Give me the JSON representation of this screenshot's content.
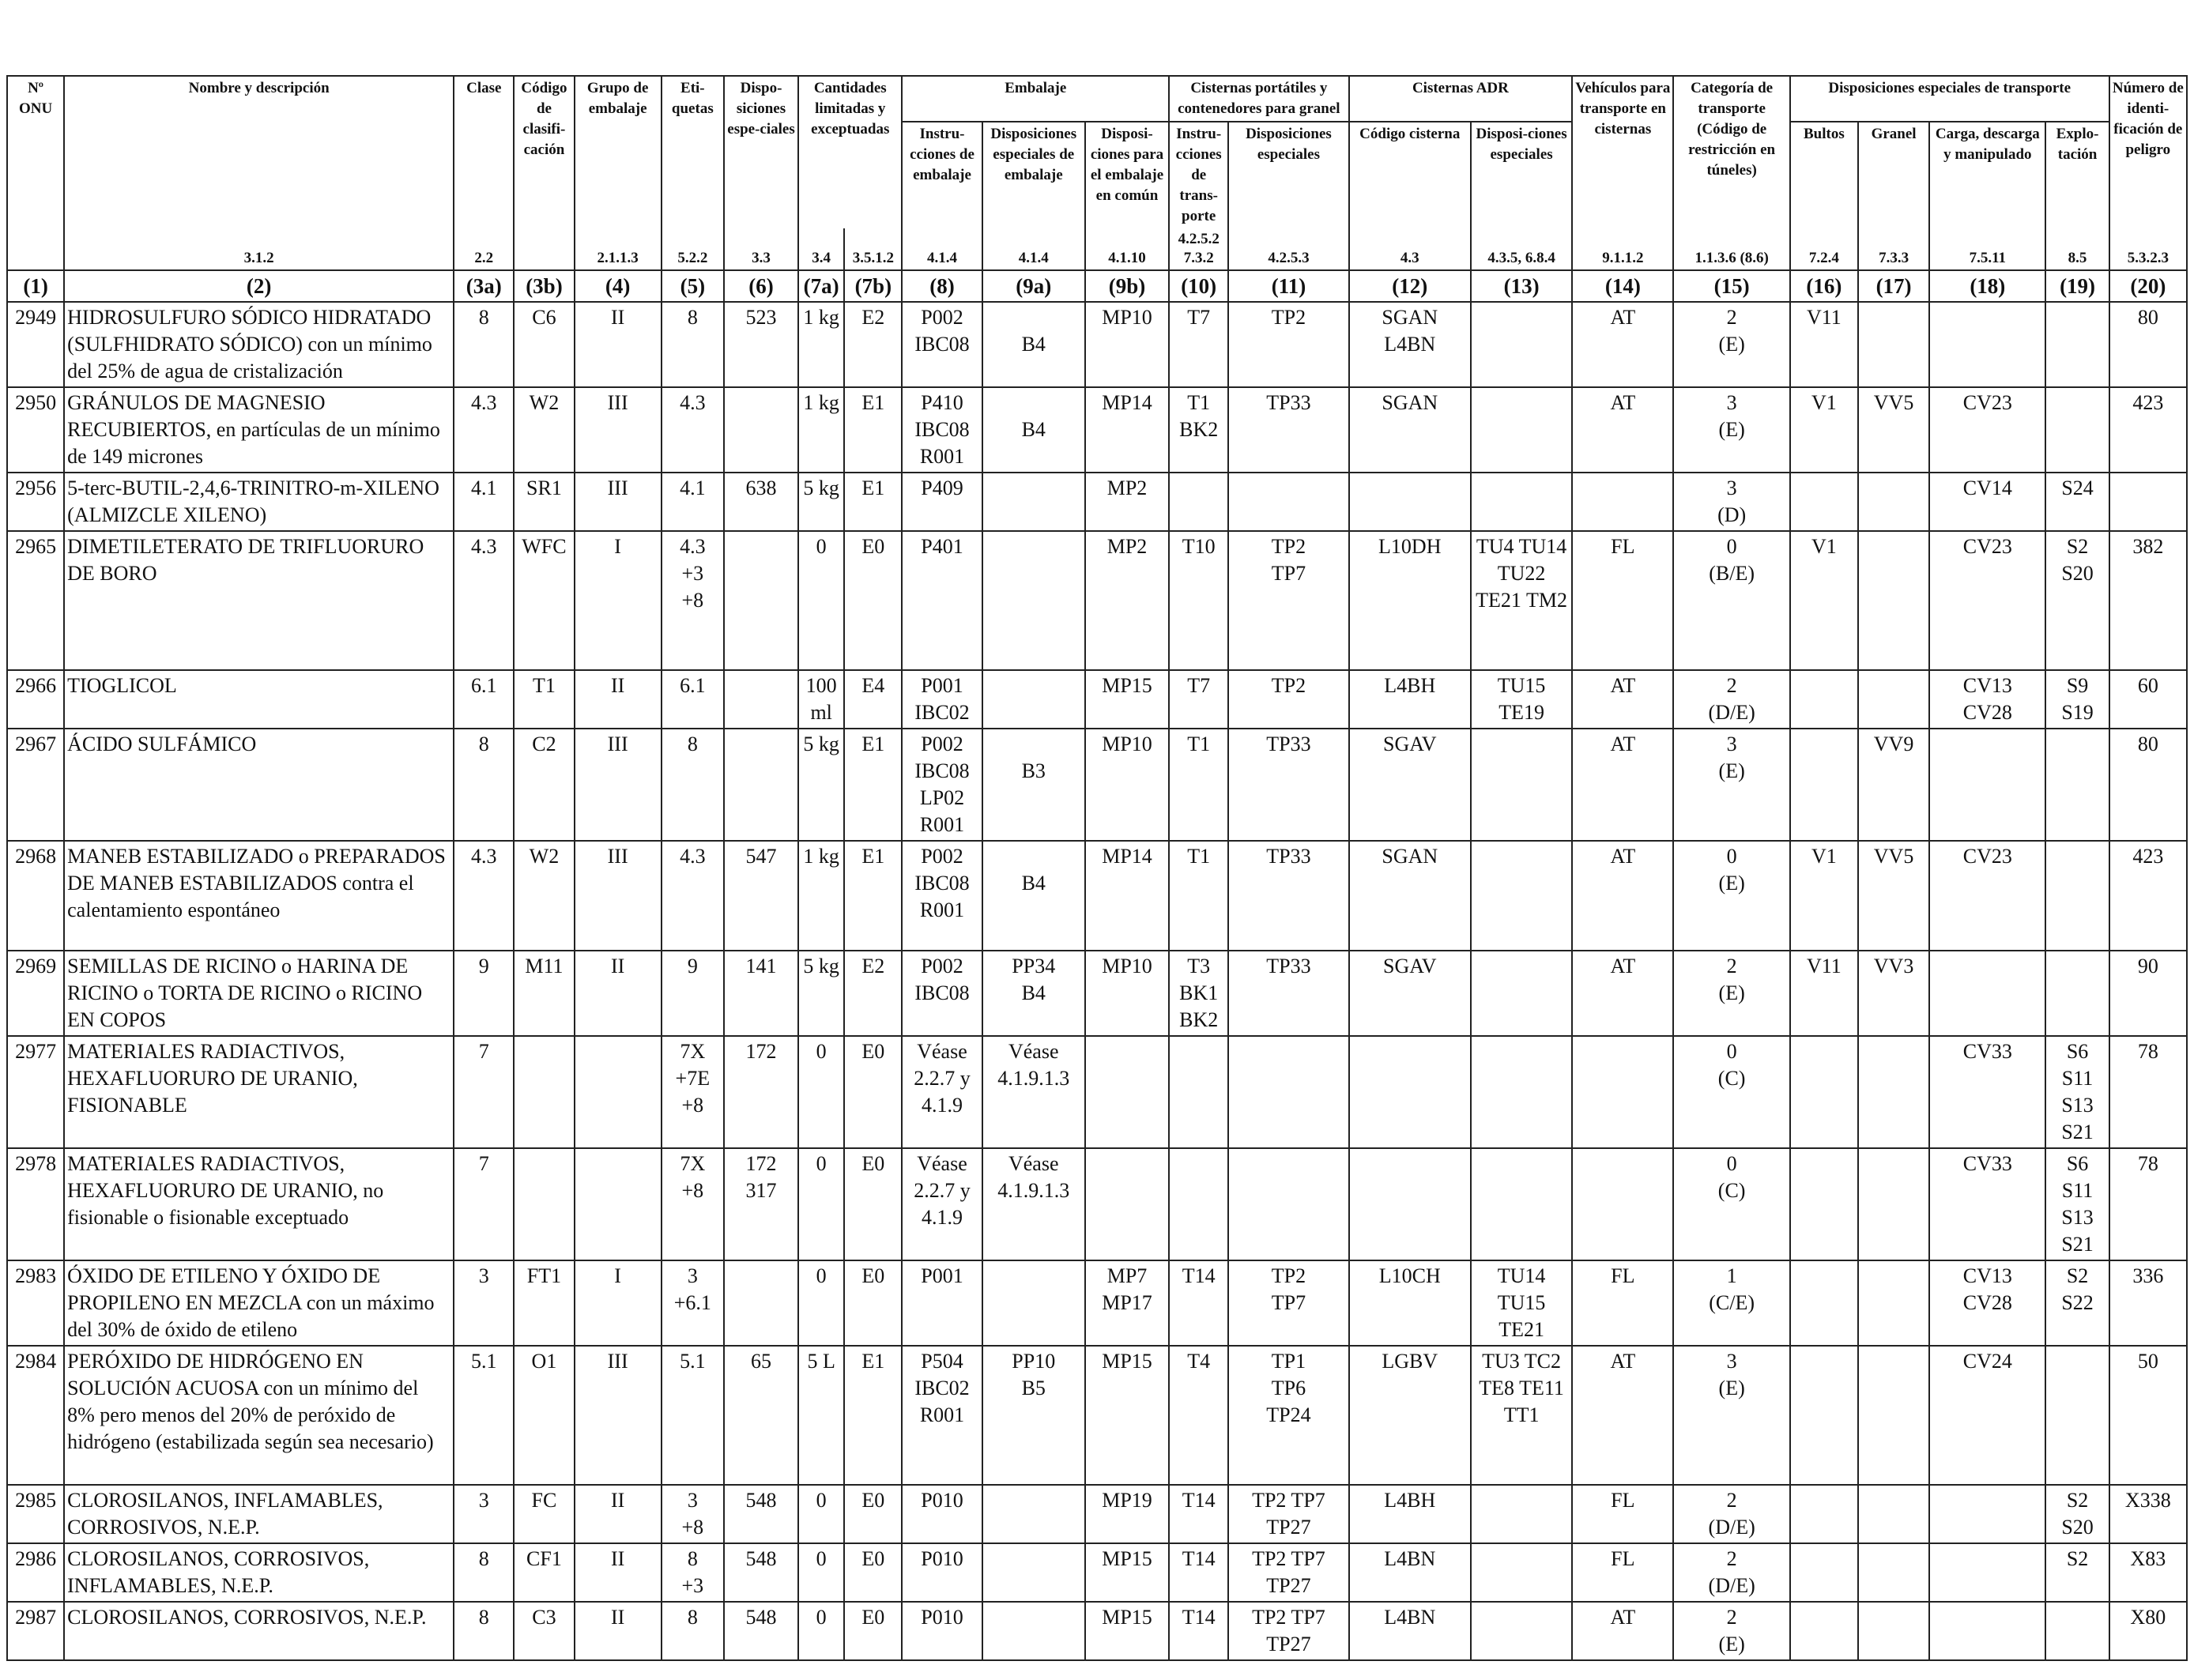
{
  "columns": [
    {
      "head": "Nº ONU",
      "ref": "",
      "num": "(1)"
    },
    {
      "head": "Nombre y descripción",
      "ref": "3.1.2",
      "num": "(2)"
    },
    {
      "head": "Clase",
      "ref": "2.2",
      "num": "(3a)"
    },
    {
      "head": "Código de clasifi-cación",
      "ref": "",
      "num": "(3b)"
    },
    {
      "head": "Grupo de embalaje",
      "ref": "2.1.1.3",
      "num": "(4)"
    },
    {
      "head": "Eti-quetas",
      "ref": "5.2.2",
      "num": "(5)"
    },
    {
      "head": "Dispo-siciones espe-ciales",
      "ref": "3.3",
      "num": "(6)"
    },
    {
      "head": "",
      "ref": "3.4",
      "num": "(7a)"
    },
    {
      "head": "",
      "ref": "3.5.1.2",
      "num": "(7b)"
    },
    {
      "head": "Instru-cciones de embalaje",
      "ref": "4.1.4",
      "num": "(8)"
    },
    {
      "head": "Disposiciones especiales de embalaje",
      "ref": "4.1.4",
      "num": "(9a)"
    },
    {
      "head": "Disposi-ciones para el embalaje en común",
      "ref": "4.1.10",
      "num": "(9b)"
    },
    {
      "head": "Instru-cciones de trans-porte",
      "ref": "4.2.5.2 7.3.2",
      "num": "(10)"
    },
    {
      "head": "Disposiciones especiales",
      "ref": "4.2.5.3",
      "num": "(11)"
    },
    {
      "head": "Código cisterna",
      "ref": "4.3",
      "num": "(12)"
    },
    {
      "head": "Disposi-ciones especiales",
      "ref": "4.3.5, 6.8.4",
      "num": "(13)"
    },
    {
      "head": "Vehículos para transporte en cisternas",
      "ref": "9.1.1.2",
      "num": "(14)"
    },
    {
      "head": "Categoría de transporte (Código de restricción en túneles)",
      "ref": "1.1.3.6 (8.6)",
      "num": "(15)"
    },
    {
      "head": "Bultos",
      "ref": "7.2.4",
      "num": "(16)"
    },
    {
      "head": "Granel",
      "ref": "7.3.3",
      "num": "(17)"
    },
    {
      "head": "Carga, descarga y manipulado",
      "ref": "7.5.11",
      "num": "(18)"
    },
    {
      "head": "Explo-tación",
      "ref": "8.5",
      "num": "(19)"
    },
    {
      "head": "Número de identi-ficación de peligro",
      "ref": "5.3.2.3",
      "num": "(20)"
    }
  ],
  "groups": {
    "cantidades": "Cantidades limitadas y exceptuadas",
    "embalaje": "Embalaje",
    "cisternas_portatiles": "Cisternas portátiles y contenedores para granel",
    "cisternas_adr": "Cisternas ADR",
    "disposiciones_transporte": "Disposiciones especiales de transporte"
  },
  "rows": [
    {
      "h": 104,
      "cells": [
        "2949",
        "HIDROSULFURO SÓDICO HIDRATADO (SULFHIDRATO SÓDICO) con un mínimo del 25% de agua de cristalización",
        "8",
        "C6",
        "II",
        "8",
        "523",
        "1 kg",
        "E2",
        "P002\nIBC08",
        "\nB4",
        "MP10",
        "T7",
        "TP2",
        "SGAN\nL4BN",
        "",
        "AT",
        "2\n(E)",
        "V11",
        "",
        "",
        "",
        "80"
      ]
    },
    {
      "h": 104,
      "cells": [
        "2950",
        "GRÁNULOS DE MAGNESIO RECUBIERTOS, en partículas de un mínimo de 149 micrones",
        "4.3",
        "W2",
        "III",
        "4.3",
        "",
        "1 kg",
        "E1",
        "P410\nIBC08\nR001",
        "\nB4",
        "MP14",
        "T1\nBK2",
        "TP33",
        "SGAN",
        "",
        "AT",
        "3\n(E)",
        "V1",
        "VV5",
        "CV23",
        "",
        "423"
      ]
    },
    {
      "h": 70,
      "cells": [
        "2956",
        "5-terc-BUTIL-2,4,6-TRINITRO-m-XILENO (ALMIZCLE XILENO)",
        "4.1",
        "SR1",
        "III",
        "4.1",
        "638",
        "5 kg",
        "E1",
        "P409",
        "",
        "MP2",
        "",
        "",
        "",
        "",
        "",
        "3\n(D)",
        "",
        "",
        "CV14",
        "S24",
        ""
      ]
    },
    {
      "h": 176,
      "cells": [
        "2965",
        "DIMETILETERATO DE TRIFLUORURO DE BORO",
        "4.3",
        "WFC",
        "I",
        "4.3\n+3\n+8",
        "",
        "0",
        "E0",
        "P401",
        "",
        "MP2",
        "T10",
        "TP2\nTP7",
        "L10DH",
        "TU4 TU14\nTU22\nTE21 TM2",
        "FL",
        "0\n(B/E)",
        "V1",
        "",
        "CV23",
        "S2\nS20",
        "382"
      ]
    },
    {
      "h": 68,
      "cells": [
        "2966",
        "TIOGLICOL",
        "6.1",
        "T1",
        "II",
        "6.1",
        "",
        "100\nml",
        "E4",
        "P001\nIBC02",
        "",
        "MP15",
        "T7",
        "TP2",
        "L4BH",
        "TU15\nTE19",
        "AT",
        "2\n(D/E)",
        "",
        "",
        "CV13\nCV28",
        "S9\nS19",
        "60"
      ]
    },
    {
      "h": 140,
      "cells": [
        "2967",
        "ÁCIDO SULFÁMICO",
        "8",
        "C2",
        "III",
        "8",
        "",
        "5 kg",
        "E1",
        "P002\nIBC08\nLP02\nR001",
        "\nB3",
        "MP10",
        "T1",
        "TP33",
        "SGAV",
        "",
        "AT",
        "3\n(E)",
        "",
        "VV9",
        "",
        "",
        "80"
      ]
    },
    {
      "h": 139,
      "cells": [
        "2968",
        "MANEB ESTABILIZADO o PREPARADOS DE MANEB ESTABILIZADOS contra el calentamiento espontáneo",
        "4.3",
        "W2",
        "III",
        "4.3",
        "547",
        "1 kg",
        "E1",
        "P002\nIBC08\nR001",
        "\nB4",
        "MP14",
        "T1",
        "TP33",
        "SGAN",
        "",
        "AT",
        "0\n(E)",
        "V1",
        "VV5",
        "CV23",
        "",
        "423"
      ]
    },
    {
      "h": 104,
      "cells": [
        "2969",
        "SEMILLAS DE RICINO o HARINA DE RICINO o TORTA DE RICINO o RICINO EN COPOS",
        "9",
        "M11",
        "II",
        "9",
        "141",
        "5 kg",
        "E2",
        "P002\nIBC08",
        "PP34\nB4",
        "MP10",
        "T3\nBK1\nBK2",
        "TP33",
        "SGAV",
        "",
        "AT",
        "2\n(E)",
        "V11",
        "VV3",
        "",
        "",
        "90"
      ]
    },
    {
      "h": 140,
      "cells": [
        "2977",
        "MATERIALES RADIACTIVOS, HEXAFLUORURO DE URANIO, FISIONABLE",
        "7",
        "",
        "",
        "7X\n+7E\n+8",
        "172",
        "0",
        "E0",
        "Véase\n2.2.7 y\n4.1.9",
        "Véase\n4.1.9.1.3",
        "",
        "",
        "",
        "",
        "",
        "",
        "0\n(C)",
        "",
        "",
        "CV33",
        "S6\nS11\nS13\nS21",
        "78"
      ]
    },
    {
      "h": 140,
      "cells": [
        "2978",
        "MATERIALES RADIACTIVOS, HEXAFLUORURO DE URANIO, no fisionable o fisionable exceptuado",
        "7",
        "",
        "",
        "7X\n+8",
        "172\n317",
        "0",
        "E0",
        "Véase\n2.2.7 y\n4.1.9",
        "Véase\n4.1.9.1.3",
        "",
        "",
        "",
        "",
        "",
        "",
        "0\n(C)",
        "",
        "",
        "CV33",
        "S6\nS11\nS13\nS21",
        "78"
      ]
    },
    {
      "h": 104,
      "cells": [
        "2983",
        "ÓXIDO DE ETILENO Y ÓXIDO DE PROPILENO EN MEZCLA con un máximo del 30% de óxido de etileno",
        "3",
        "FT1",
        "I",
        "3\n+6.1",
        "",
        "0",
        "E0",
        "P001",
        "",
        "MP7\nMP17",
        "T14",
        "TP2\nTP7",
        "L10CH",
        "TU14\nTU15\nTE21",
        "FL",
        "1\n(C/E)",
        "",
        "",
        "CV13\nCV28",
        "S2\nS22",
        "336"
      ]
    },
    {
      "h": 176,
      "cells": [
        "2984",
        "PERÓXIDO DE HIDRÓGENO EN SOLUCIÓN ACUOSA con un mínimo del 8% pero menos del 20% de peróxido de hidrógeno (estabilizada según sea necesario)",
        "5.1",
        "O1",
        "III",
        "5.1",
        "65",
        "5 L",
        "E1",
        "P504\nIBC02\nR001",
        "PP10\nB5",
        "MP15",
        "T4",
        "TP1\nTP6\nTP24",
        "LGBV",
        "TU3 TC2\nTE8 TE11\nTT1",
        "AT",
        "3\n(E)",
        "",
        "",
        "CV24",
        "",
        "50"
      ]
    },
    {
      "h": 70,
      "cells": [
        "2985",
        "CLOROSILANOS, INFLAMABLES, CORROSIVOS, N.E.P.",
        "3",
        "FC",
        "II",
        "3\n+8",
        "548",
        "0",
        "E0",
        "P010",
        "",
        "MP19",
        "T14",
        "TP2 TP7\nTP27",
        "L4BH",
        "",
        "FL",
        "2\n(D/E)",
        "",
        "",
        "",
        "S2\nS20",
        "X338"
      ]
    },
    {
      "h": 70,
      "cells": [
        "2986",
        "CLOROSILANOS, CORROSIVOS, INFLAMABLES, N.E.P.",
        "8",
        "CF1",
        "II",
        "8\n+3",
        "548",
        "0",
        "E0",
        "P010",
        "",
        "MP15",
        "T14",
        "TP2 TP7\nTP27",
        "L4BN",
        "",
        "FL",
        "2\n(D/E)",
        "",
        "",
        "",
        "S2",
        "X83"
      ]
    },
    {
      "h": 70,
      "cells": [
        "2987",
        "CLOROSILANOS, CORROSIVOS, N.E.P.",
        "8",
        "C3",
        "II",
        "8",
        "548",
        "0",
        "E0",
        "P010",
        "",
        "MP15",
        "T14",
        "TP2 TP7\nTP27",
        "L4BN",
        "",
        "AT",
        "2\n(E)",
        "",
        "",
        "",
        "",
        "X80"
      ]
    }
  ]
}
